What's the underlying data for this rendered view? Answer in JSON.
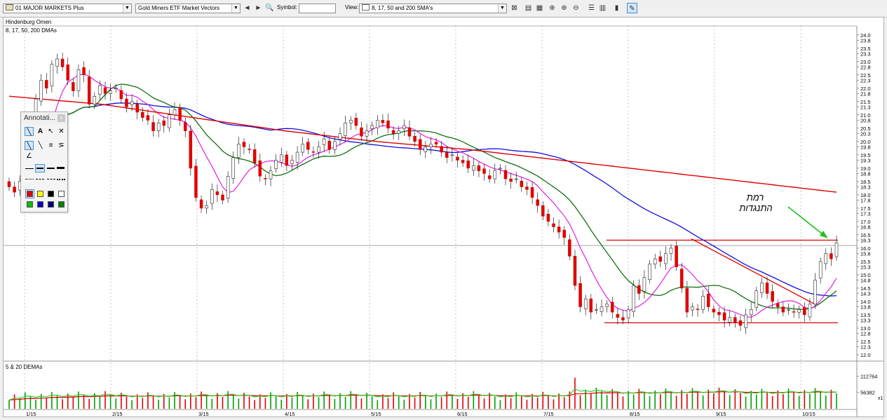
{
  "toolbar": {
    "list_select": "01 MAJOR MARKETS Plus",
    "symbol_select": "Gold Miners ETF Market Vectors",
    "symbol_label": "Symbol:",
    "symbol_value": "",
    "view_label": "View:",
    "view_select": "8, 17, 50 and 200 SMA's"
  },
  "chart": {
    "window_title": "Hindenburg Omen",
    "price_panel_label": "8, 17, 50, 200 DMAs",
    "volume_panel_label": "5 & 20 DEMAs",
    "annotation_line1": "רמת",
    "annotation_line2": "התנגדות",
    "volume_multiplier": "x1",
    "colors": {
      "up": "#ffffff",
      "down": "#e00000",
      "sma8": "#e020e0",
      "sma17": "#107010",
      "sma50": "#1010e0",
      "sma200": "#e00000",
      "vol_up": "#00a000",
      "vol_down": "#e00000"
    }
  },
  "annotations_panel": {
    "title": "Annotati...",
    "colors": [
      "#e00000",
      "#ffff00",
      "#000000",
      "#ffffff",
      "#00c000",
      "#0000c0",
      "#000080",
      "#008000"
    ]
  },
  "chart_data": {
    "type": "candlestick",
    "title": "Gold Miners ETF Market Vectors",
    "price_axis_ticks": [
      "24.0",
      "23.8",
      "23.5",
      "23.3",
      "23.0",
      "22.8",
      "22.5",
      "22.3",
      "22.0",
      "21.8",
      "21.5",
      "21.3",
      "21.0",
      "20.8",
      "20.5",
      "20.3",
      "20.0",
      "19.8",
      "19.5",
      "19.3",
      "19.0",
      "18.8",
      "18.5",
      "18.3",
      "18.0",
      "17.8",
      "17.5",
      "17.3",
      "17.0",
      "16.8",
      "16.5",
      "16.3",
      "16.0",
      "15.8",
      "15.5",
      "15.3",
      "15.0",
      "14.8",
      "14.5",
      "14.3",
      "14.0",
      "13.8",
      "13.5",
      "13.3",
      "13.0",
      "12.8",
      "12.5",
      "12.3",
      "12.0"
    ],
    "ylim": [
      12.0,
      24.1
    ],
    "volume_axis_ticks": [
      "112764",
      "56382"
    ],
    "x_tick_labels": [
      "1/15",
      "2/15",
      "3/15",
      "4/15",
      "5/15",
      "6/15",
      "7/15",
      "8/15",
      "9/15",
      "10/15"
    ],
    "closes": [
      18.3,
      18.1,
      18.5,
      19.5,
      20.8,
      21.6,
      22.3,
      22.0,
      22.9,
      23.1,
      22.8,
      22.3,
      21.9,
      22.7,
      22.5,
      21.4,
      21.7,
      22.1,
      21.8,
      21.9,
      22.0,
      21.6,
      21.3,
      21.5,
      21.1,
      20.9,
      20.8,
      20.4,
      20.7,
      20.6,
      21.0,
      21.2,
      20.8,
      20.4,
      19.0,
      17.9,
      17.5,
      17.6,
      18.2,
      18.0,
      17.8,
      18.7,
      19.4,
      19.9,
      19.8,
      19.7,
      19.2,
      18.7,
      18.6,
      18.9,
      19.3,
      19.5,
      19.1,
      19.3,
      19.6,
      19.9,
      19.7,
      19.6,
      19.8,
      20.1,
      19.7,
      20.0,
      20.3,
      20.7,
      20.8,
      20.6,
      20.2,
      20.4,
      20.6,
      20.8,
      20.7,
      20.5,
      20.3,
      20.4,
      20.6,
      20.2,
      20.0,
      19.7,
      19.8,
      19.9,
      19.9,
      19.6,
      19.4,
      19.5,
      19.3,
      19.2,
      19.0,
      19.1,
      18.9,
      18.8,
      18.6,
      18.9,
      19.0,
      18.6,
      18.5,
      18.6,
      18.3,
      18.2,
      17.9,
      17.6,
      17.2,
      17.0,
      16.8,
      16.6,
      16.4,
      15.7,
      14.6,
      13.8,
      14.1,
      13.6,
      13.7,
      13.8,
      13.9,
      13.6,
      13.4,
      13.3,
      13.7,
      14.6,
      14.3,
      14.9,
      15.4,
      15.6,
      15.5,
      15.8,
      16.0,
      15.3,
      14.5,
      13.6,
      13.8,
      13.7,
      14.2,
      13.8,
      13.6,
      13.5,
      13.3,
      13.4,
      13.2,
      13.1,
      13.5,
      13.7,
      14.4,
      14.7,
      14.3,
      14.0,
      13.8,
      13.6,
      13.7,
      13.6,
      13.7,
      13.5,
      13.9,
      14.8,
      15.5,
      15.8,
      15.6,
      16.2
    ],
    "series": [
      {
        "name": "8 SMA"
      },
      {
        "name": "17 SMA"
      },
      {
        "name": "50 SMA"
      },
      {
        "name": "200 SMA",
        "values": [
          21.7,
          21.4,
          20.9,
          20.4,
          20.0,
          19.7,
          19.3,
          18.9,
          18.5,
          18.1
        ]
      }
    ],
    "resistance_level": 16.3,
    "support_level": 13.2,
    "crosshair_level": 16.1
  }
}
